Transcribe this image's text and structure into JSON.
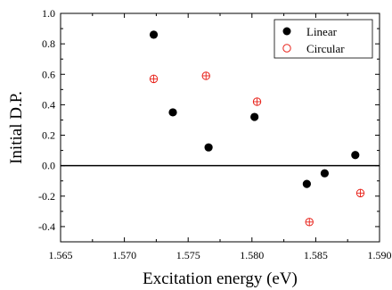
{
  "chart_data": {
    "type": "scatter",
    "xlabel": "Excitation energy (eV)",
    "ylabel": "Initial D.P.",
    "xlim": [
      1.565,
      1.59
    ],
    "ylim": [
      -0.5,
      1.0
    ],
    "xticks": [
      1.565,
      1.57,
      1.575,
      1.58,
      1.585,
      1.59
    ],
    "xtick_labels": [
      "1.565",
      "1.570",
      "1.575",
      "1.580",
      "1.585",
      "1.590"
    ],
    "yticks": [
      -0.4,
      -0.2,
      0.0,
      0.2,
      0.4,
      0.6,
      0.8,
      1.0
    ],
    "ytick_labels": [
      "-0.4",
      "-0.2",
      "0.0",
      "0.2",
      "0.4",
      "0.6",
      "0.8",
      "1.0"
    ],
    "reference_line_y": 0.0,
    "grid": false,
    "legend_position": "top-right",
    "series": [
      {
        "name": "Linear",
        "marker": "filled-circle",
        "color": "#000000",
        "points": [
          {
            "x": 1.5723,
            "y": 0.86
          },
          {
            "x": 1.5738,
            "y": 0.35
          },
          {
            "x": 1.5766,
            "y": 0.12
          },
          {
            "x": 1.5802,
            "y": 0.32
          },
          {
            "x": 1.5843,
            "y": -0.12
          },
          {
            "x": 1.5857,
            "y": -0.05
          },
          {
            "x": 1.5881,
            "y": 0.07
          }
        ]
      },
      {
        "name": "Circular",
        "marker": "open-circle-cross",
        "color": "#e8221a",
        "points": [
          {
            "x": 1.5723,
            "y": 0.57
          },
          {
            "x": 1.5764,
            "y": 0.59
          },
          {
            "x": 1.5804,
            "y": 0.42
          },
          {
            "x": 1.5845,
            "y": -0.37
          },
          {
            "x": 1.5885,
            "y": -0.18
          }
        ]
      }
    ]
  }
}
